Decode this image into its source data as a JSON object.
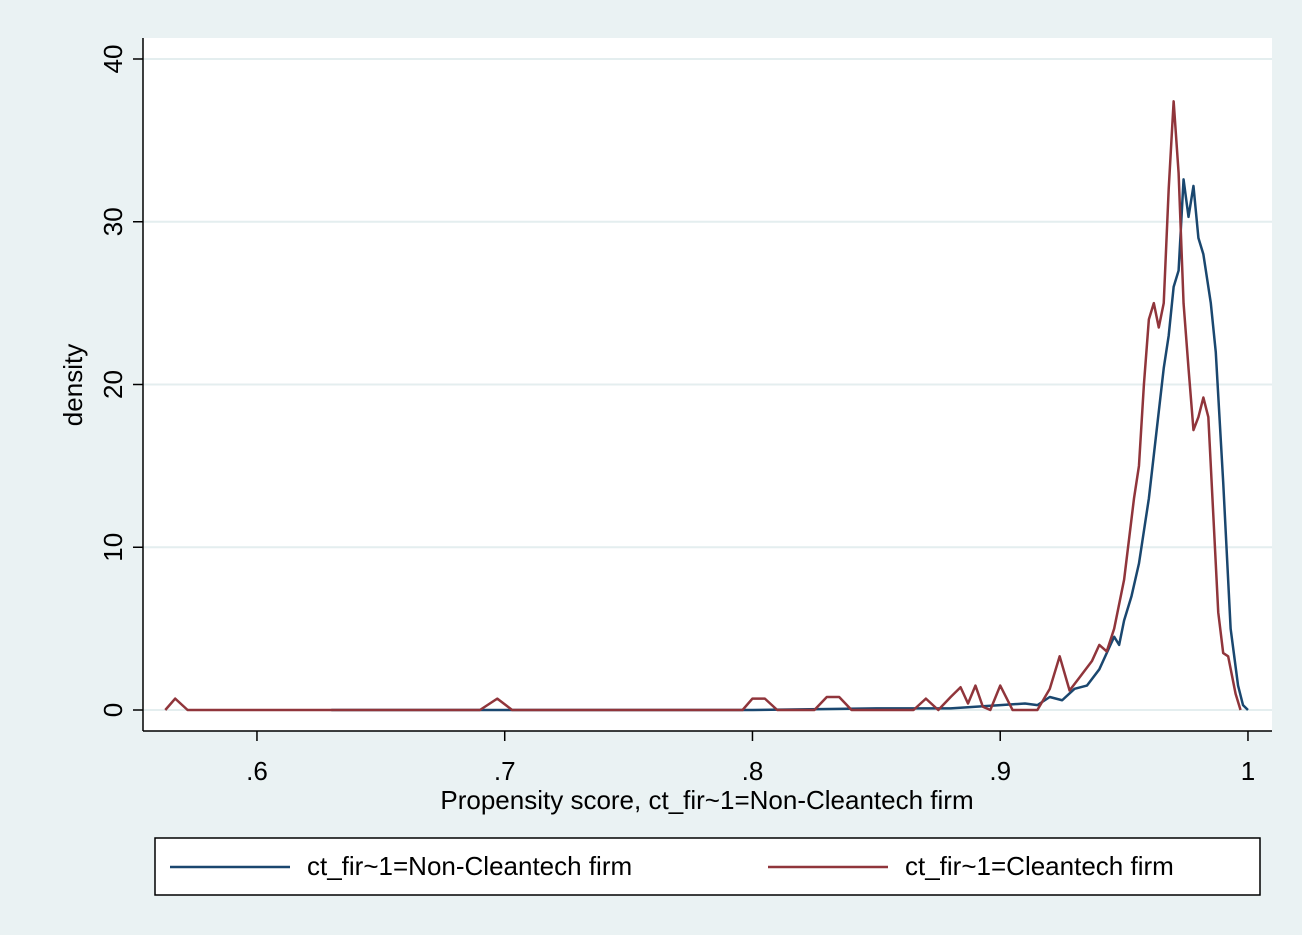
{
  "chart_data": {
    "type": "line",
    "x_label": "Propensity score, ct_fir~1=Non-Cleantech firm",
    "y_label": "density",
    "xlim": [
      0.554,
      1.0097
    ],
    "ylim": [
      -1.29,
      41.29
    ],
    "xticks": [
      {
        "value": 0.6,
        "label": ".6"
      },
      {
        "value": 0.7,
        "label": ".7"
      },
      {
        "value": 0.8,
        "label": ".8"
      },
      {
        "value": 0.9,
        "label": ".9"
      },
      1
    ],
    "yticks": [
      0,
      10,
      20,
      30,
      40
    ],
    "grid": true,
    "legend": "bottom",
    "series": [
      {
        "name": "ct_fir~1=Non-Cleantech firm",
        "color": "#1a476f",
        "x": [
          0.63,
          0.7,
          0.8,
          0.85,
          0.88,
          0.9,
          0.91,
          0.915,
          0.92,
          0.925,
          0.93,
          0.935,
          0.94,
          0.943,
          0.946,
          0.948,
          0.95,
          0.953,
          0.956,
          0.96,
          0.963,
          0.966,
          0.968,
          0.97,
          0.972,
          0.974,
          0.976,
          0.978,
          0.98,
          0.982,
          0.985,
          0.987,
          0.99,
          0.993,
          0.996,
          0.998,
          1.0
        ],
        "values": [
          0,
          0,
          0,
          0.1,
          0.1,
          0.3,
          0.4,
          0.3,
          0.8,
          0.6,
          1.3,
          1.5,
          2.5,
          3.5,
          4.5,
          4.0,
          5.5,
          7,
          9,
          13,
          17,
          21,
          23,
          26,
          27,
          32.6,
          30.3,
          32.2,
          29,
          28,
          25,
          22,
          14,
          5,
          1.5,
          0.3,
          0
        ]
      },
      {
        "name": "ct_fir~1=Cleantech firm",
        "color": "#90353b",
        "x": [
          0.563,
          0.567,
          0.572,
          0.69,
          0.697,
          0.703,
          0.796,
          0.8,
          0.805,
          0.81,
          0.825,
          0.83,
          0.835,
          0.84,
          0.865,
          0.87,
          0.875,
          0.88,
          0.884,
          0.887,
          0.89,
          0.893,
          0.896,
          0.9,
          0.905,
          0.915,
          0.92,
          0.924,
          0.928,
          0.932,
          0.937,
          0.94,
          0.943,
          0.946,
          0.95,
          0.954,
          0.956,
          0.958,
          0.96,
          0.962,
          0.964,
          0.966,
          0.968,
          0.97,
          0.972,
          0.974,
          0.976,
          0.978,
          0.98,
          0.982,
          0.984,
          0.986,
          0.988,
          0.99,
          0.992,
          0.995,
          0.997
        ],
        "values": [
          0,
          0.7,
          0,
          0,
          0.7,
          0,
          0,
          0.7,
          0.7,
          0,
          0,
          0.8,
          0.8,
          0,
          0,
          0.7,
          0,
          0.8,
          1.4,
          0.4,
          1.5,
          0.2,
          0,
          1.5,
          0,
          0,
          1.3,
          3.3,
          1.2,
          2,
          3,
          4,
          3.6,
          5,
          8,
          13,
          15,
          20,
          24,
          25,
          23.5,
          25,
          32,
          37.4,
          33,
          25,
          21,
          17.2,
          18,
          19.2,
          18,
          12,
          6,
          3.5,
          3.3,
          1,
          0
        ]
      }
    ]
  }
}
